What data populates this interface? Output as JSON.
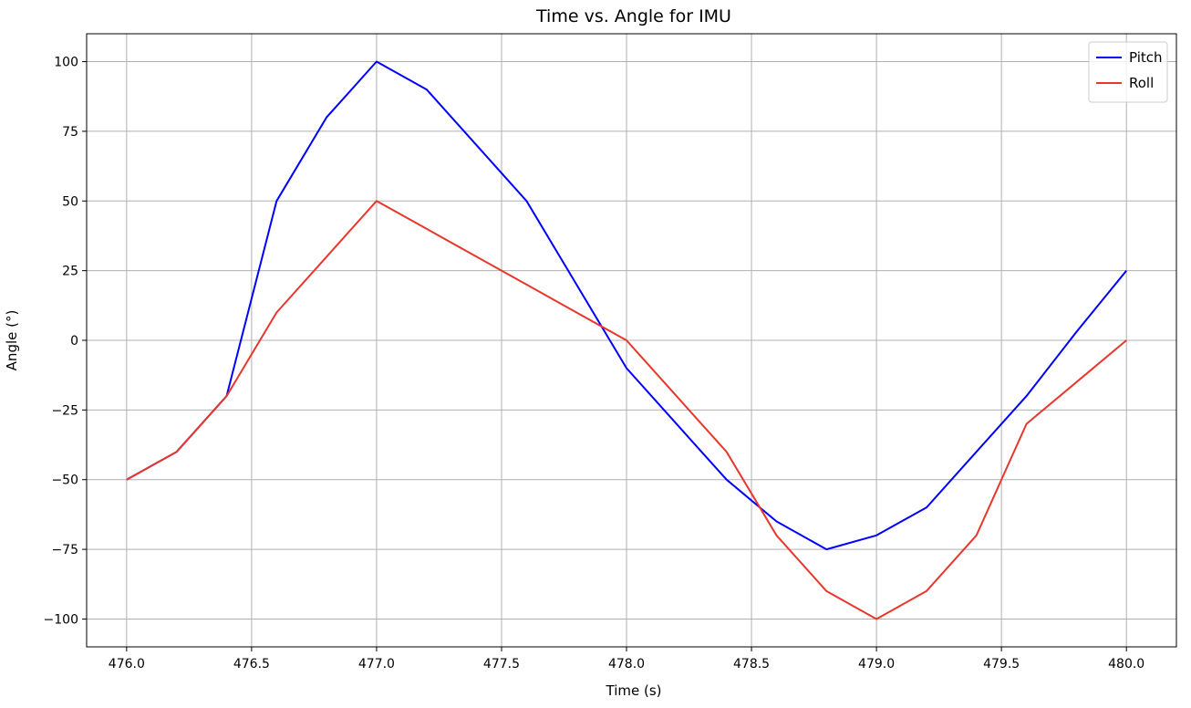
{
  "chart_data": {
    "type": "line",
    "title": "Time vs. Angle for IMU",
    "xlabel": "Time (s)",
    "ylabel": "Angle (°)",
    "xlim": [
      475.84,
      480.2
    ],
    "ylim": [
      -110,
      110
    ],
    "xticks": [
      476.0,
      476.5,
      477.0,
      477.5,
      478.0,
      478.5,
      479.0,
      479.5,
      480.0
    ],
    "xtick_labels": [
      "476.0",
      "476.5",
      "477.0",
      "477.5",
      "478.0",
      "478.5",
      "479.0",
      "479.5",
      "480.0"
    ],
    "yticks": [
      100,
      75,
      50,
      25,
      0,
      -25,
      -50,
      -75,
      -100
    ],
    "ytick_labels": [
      "100",
      "75",
      "50",
      "25",
      "0",
      "−25",
      "−50",
      "−75",
      "−100"
    ],
    "grid": true,
    "legend_position": "top-right",
    "x": [
      476.0,
      476.2,
      476.4,
      476.6,
      476.8,
      477.0,
      477.2,
      477.4,
      477.6,
      477.8,
      478.0,
      478.2,
      478.4,
      478.6,
      478.8,
      479.0,
      479.2,
      479.4,
      479.6,
      479.8,
      480.0
    ],
    "series": [
      {
        "name": "Pitch",
        "color": "#0000ff",
        "values": [
          -50,
          -40,
          -20,
          50,
          80,
          100,
          90,
          70,
          50,
          20,
          -10,
          -30,
          -50,
          -65,
          -75,
          -70,
          -60,
          -40,
          -20,
          3,
          25
        ]
      },
      {
        "name": "Roll",
        "color": "#e8372c",
        "values": [
          -50,
          -40,
          -20,
          10,
          30,
          50,
          40,
          30,
          20,
          10,
          0,
          -20,
          -40,
          -70,
          -90,
          -100,
          -90,
          -70,
          -30,
          -15,
          0
        ]
      }
    ]
  }
}
